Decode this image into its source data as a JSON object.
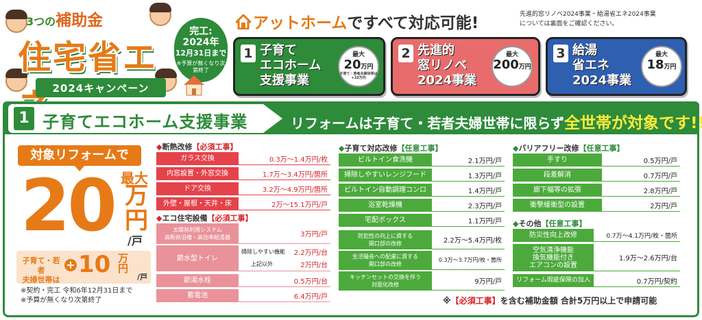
{
  "header": {
    "sub_prefix": "3つの",
    "sub_em": "補助金",
    "main_title": "住宅省エネ",
    "campaign": "2024キャンペーン",
    "deadline": {
      "line1": "完工:",
      "line2": "2024年",
      "line3": "12月31日まで",
      "note": "※予算が無くなり次第終了"
    },
    "at_home_brand": "アットホーム",
    "at_home_rest": "ですべて対応可能!",
    "note_line1": "先進的窓リノベ2024事業・給湯省エネ2024事業",
    "note_line2": "については裏面をご確認ください。",
    "programs": [
      {
        "num": "1",
        "title_l1": "子育て",
        "title_l2": "エコホーム",
        "title_l3": "支援事業",
        "max": "最大",
        "amount": "20",
        "unit": "万円",
        "note": "子育て・若者夫婦世帯は+10万円",
        "color": "#2d8b3a"
      },
      {
        "num": "2",
        "title_l1": "先進的",
        "title_l2": "窓リノベ",
        "title_l3": "2024事業",
        "max": "最大",
        "amount": "200",
        "unit": "万円",
        "note": "",
        "color": "#e86c6c"
      },
      {
        "num": "3",
        "title_l1": "給湯",
        "title_l2": "省エネ",
        "title_l3": "2024事業",
        "max": "最大",
        "amount": "18",
        "unit": "万円",
        "note": "",
        "color": "#2f5fb0"
      }
    ]
  },
  "section": {
    "num": "1",
    "title": "子育てエコホーム支援事業",
    "slogan_prefix": "リフォームは子育て・若者夫婦世帯に限らず",
    "slogan_highlight": "全世帯が対象です!!"
  },
  "promo": {
    "label": "対象リフォームで",
    "max": "最大",
    "amount": "20",
    "unit": "万円",
    "per": "/戸",
    "bonus_label_l1": "子育て・若者",
    "bonus_label_l2": "夫婦世帯は",
    "bonus_plus": "+",
    "bonus_amount": "10",
    "bonus_unit": "万円",
    "bonus_per": "/戸",
    "note1": "※契約・完工 令和6年12月31日まで",
    "note2": "※予算が無くなり次第終了"
  },
  "tables": {
    "insulation": {
      "bullet": "◆",
      "title": "断熱改修",
      "tag": "【必須工事】",
      "rows": [
        {
          "name": "ガラス交換",
          "price": "0.3万～1.4万円/枚"
        },
        {
          "name": "内窓設置・外窓交換",
          "price": "1.7万～3.4万円/箇所"
        },
        {
          "name": "ドア交換",
          "price": "3.2万～4.9万円/箇所"
        },
        {
          "name": "外壁・屋根・天井・床",
          "price": "2万～15.1万円/戸"
        }
      ]
    },
    "eco": {
      "bullet": "◆",
      "title": "エコ住宅設備",
      "tag": "【必須工事】",
      "solar_l1": "太陽熱利用システム",
      "solar_l2": "高断熱浴槽・高効率給湯器",
      "solar_price": "3万円/戸",
      "toilet": "節水型トイレ",
      "toilet_sub1": "掃除しやすい機能",
      "toilet_price1": "2.2万円/台",
      "toilet_sub2": "上記以外",
      "toilet_price2": "2万円/台",
      "faucet": "節湯水栓",
      "faucet_price": "0.5万円/台",
      "battery": "蓄電池",
      "battery_price": "6.4万円/戸"
    },
    "childcare": {
      "bullet": "◆",
      "title": "子育て対応改修",
      "tag": "【任意工事】",
      "rows": [
        {
          "name": "ビルトイン食洗機",
          "price": "2.1万円/戸"
        },
        {
          "name": "掃除しやすいレンジフード",
          "price": "1.3万円/戸"
        },
        {
          "name": "ビルトイン自動調理コンロ",
          "price": "1.4万円/戸"
        },
        {
          "name": "浴室乾燥機",
          "price": "2.3万円/戸"
        },
        {
          "name": "宅配ボックス",
          "price": "1.1万円/戸"
        }
      ],
      "crime_l1": "防犯性の向上に資する",
      "crime_l2": "開口部の改修",
      "crime_price": "2.2万～5.4万円/枚",
      "noise_l1": "生活騒音への配慮に資する",
      "noise_l2": "開口部の改修",
      "noise_price": "0.3万～3.7万円/枚・箇所",
      "kitchen_l1": "キッチンセットの交換を伴う",
      "kitchen_l2": "対面化改修",
      "kitchen_price": "9万円/戸"
    },
    "barrierfree": {
      "bullet": "◆",
      "title": "バリアフリー改修",
      "tag": "【任意工事】",
      "rows": [
        {
          "name": "手すり",
          "price": "0.5万円/戸"
        },
        {
          "name": "段差解消",
          "price": "0.7万円/戸"
        },
        {
          "name": "廊下幅等の拡張",
          "price": "2.8万円/戸"
        },
        {
          "name": "衝撃緩衝型の設置",
          "price": "2万円/戸"
        }
      ]
    },
    "other": {
      "bullet": "◆",
      "title": "その他",
      "tag": "【任意工事】",
      "disaster": "防災性向上改修",
      "disaster_price": "0.7万～4.1万円/枚・箇所",
      "air_l1": "空気清浄機能",
      "air_l2": "換気機能付き",
      "air_l3": "エアコンの設置",
      "air_price": "1.9万～2.6万円/台",
      "insurance": "リフォーム瑕疵保険の加入",
      "insurance_price": "0.7万円/契約"
    }
  },
  "footer": {
    "mark": "※",
    "req": "【必須工事】",
    "rest": "を含む補助金額 合計5万円以上で申請可能"
  },
  "colors": {
    "green": "#2d8b3a",
    "orange": "#e67a17",
    "red": "#e4434a",
    "blue": "#2f5fb0"
  }
}
